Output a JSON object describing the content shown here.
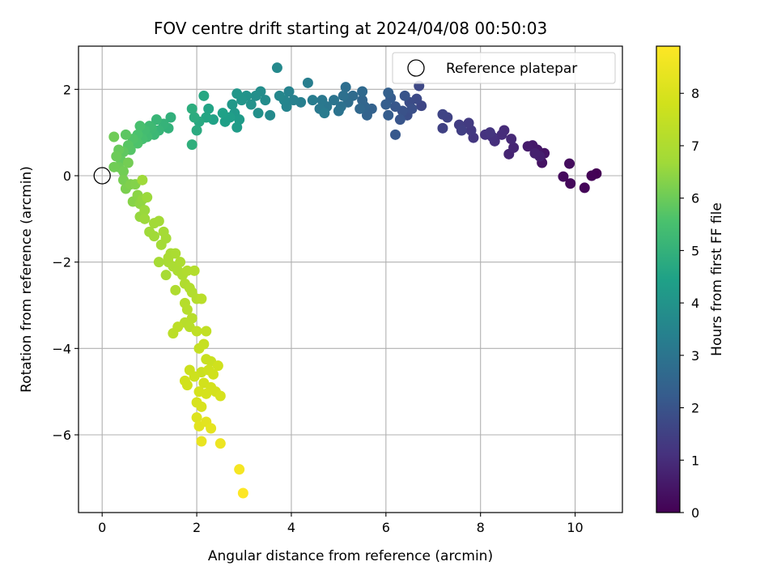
{
  "chart_data": {
    "type": "scatter",
    "title": "FOV centre drift starting at 2024/04/08 00:50:03",
    "xlabel": "Angular distance from reference (arcmin)",
    "ylabel": "Rotation from reference (arcmin)",
    "xlim": [
      -0.5,
      11.0
    ],
    "ylim": [
      -7.8,
      3.0
    ],
    "xticks": [
      0,
      2,
      4,
      6,
      8,
      10
    ],
    "yticks": [
      -6,
      -4,
      -2,
      0,
      2
    ],
    "xtick_labels": [
      "0",
      "2",
      "4",
      "6",
      "8",
      "10"
    ],
    "ytick_labels": [
      "−6",
      "−4",
      "−2",
      "0",
      "2"
    ],
    "grid": true,
    "colormap": "viridis",
    "colorbar": {
      "label": "Hours from first FF file",
      "range": [
        0,
        8.9
      ],
      "ticks": [
        0,
        1,
        2,
        3,
        4,
        5,
        6,
        7,
        8
      ],
      "tick_labels": [
        "0",
        "1",
        "2",
        "3",
        "4",
        "5",
        "6",
        "7",
        "8"
      ]
    },
    "legend": {
      "position": "top-right",
      "entries": [
        {
          "label": "Reference platepar",
          "marker": "open-circle"
        }
      ]
    },
    "reference_point": {
      "x": 0,
      "y": 0
    },
    "series": [
      {
        "points": [
          {
            "x": 10.45,
            "y": 0.05,
            "t": 0.0
          },
          {
            "x": 10.35,
            "y": 0.0,
            "t": 0.05
          },
          {
            "x": 10.2,
            "y": -0.28,
            "t": 0.1
          },
          {
            "x": 9.9,
            "y": -0.18,
            "t": 0.15
          },
          {
            "x": 9.75,
            "y": -0.02,
            "t": 0.2
          },
          {
            "x": 9.88,
            "y": 0.28,
            "t": 0.25
          },
          {
            "x": 9.3,
            "y": 0.3,
            "t": 0.4
          },
          {
            "x": 9.35,
            "y": 0.52,
            "t": 0.45
          },
          {
            "x": 9.2,
            "y": 0.6,
            "t": 0.5
          },
          {
            "x": 9.1,
            "y": 0.7,
            "t": 0.55
          },
          {
            "x": 9.0,
            "y": 0.68,
            "t": 0.6
          },
          {
            "x": 9.25,
            "y": 0.45,
            "t": 0.65
          },
          {
            "x": 9.15,
            "y": 0.52,
            "t": 0.7
          },
          {
            "x": 8.6,
            "y": 0.5,
            "t": 0.8
          },
          {
            "x": 8.7,
            "y": 0.65,
            "t": 0.85
          },
          {
            "x": 8.65,
            "y": 0.85,
            "t": 0.9
          },
          {
            "x": 8.5,
            "y": 1.05,
            "t": 0.95
          },
          {
            "x": 8.45,
            "y": 0.95,
            "t": 1.0
          },
          {
            "x": 8.3,
            "y": 0.8,
            "t": 1.05
          },
          {
            "x": 8.25,
            "y": 0.9,
            "t": 1.1
          },
          {
            "x": 8.1,
            "y": 0.95,
            "t": 1.15
          },
          {
            "x": 8.2,
            "y": 1.0,
            "t": 1.2
          },
          {
            "x": 7.85,
            "y": 0.88,
            "t": 1.25
          },
          {
            "x": 7.8,
            "y": 1.05,
            "t": 1.3
          },
          {
            "x": 7.75,
            "y": 1.22,
            "t": 1.35
          },
          {
            "x": 7.55,
            "y": 1.18,
            "t": 1.4
          },
          {
            "x": 7.6,
            "y": 1.05,
            "t": 1.45
          },
          {
            "x": 7.2,
            "y": 1.1,
            "t": 1.5
          },
          {
            "x": 7.3,
            "y": 1.35,
            "t": 1.55
          },
          {
            "x": 7.2,
            "y": 1.42,
            "t": 1.6
          },
          {
            "x": 6.75,
            "y": 1.62,
            "t": 1.65
          },
          {
            "x": 6.7,
            "y": 2.08,
            "t": 1.7
          },
          {
            "x": 6.65,
            "y": 1.78,
            "t": 1.75
          },
          {
            "x": 6.5,
            "y": 1.7,
            "t": 1.8
          },
          {
            "x": 6.45,
            "y": 1.4,
            "t": 1.85
          },
          {
            "x": 6.55,
            "y": 1.55,
            "t": 1.9
          },
          {
            "x": 6.35,
            "y": 1.5,
            "t": 1.95
          },
          {
            "x": 6.4,
            "y": 1.85,
            "t": 2.0
          },
          {
            "x": 6.3,
            "y": 1.3,
            "t": 2.05
          },
          {
            "x": 6.2,
            "y": 1.6,
            "t": 2.1
          },
          {
            "x": 6.2,
            "y": 0.95,
            "t": 2.15
          },
          {
            "x": 6.1,
            "y": 1.8,
            "t": 2.2
          },
          {
            "x": 6.05,
            "y": 1.4,
            "t": 2.25
          },
          {
            "x": 6.0,
            "y": 1.65,
            "t": 2.3
          },
          {
            "x": 6.05,
            "y": 1.92,
            "t": 2.35
          },
          {
            "x": 5.7,
            "y": 1.55,
            "t": 2.4
          },
          {
            "x": 5.6,
            "y": 1.4,
            "t": 2.45
          },
          {
            "x": 5.55,
            "y": 1.6,
            "t": 2.5
          },
          {
            "x": 5.5,
            "y": 1.75,
            "t": 2.55
          },
          {
            "x": 5.45,
            "y": 1.55,
            "t": 2.6
          },
          {
            "x": 5.5,
            "y": 1.95,
            "t": 2.65
          },
          {
            "x": 5.3,
            "y": 1.85,
            "t": 2.7
          },
          {
            "x": 5.2,
            "y": 1.7,
            "t": 2.75
          },
          {
            "x": 5.15,
            "y": 2.05,
            "t": 2.8
          },
          {
            "x": 5.1,
            "y": 1.85,
            "t": 2.85
          },
          {
            "x": 5.05,
            "y": 1.6,
            "t": 2.9
          },
          {
            "x": 5.0,
            "y": 1.5,
            "t": 2.95
          },
          {
            "x": 4.9,
            "y": 1.75,
            "t": 3.0
          },
          {
            "x": 4.75,
            "y": 1.6,
            "t": 3.05
          },
          {
            "x": 4.65,
            "y": 1.75,
            "t": 3.1
          },
          {
            "x": 4.6,
            "y": 1.55,
            "t": 3.15
          },
          {
            "x": 4.7,
            "y": 1.45,
            "t": 3.2
          },
          {
            "x": 4.45,
            "y": 1.75,
            "t": 3.25
          },
          {
            "x": 4.35,
            "y": 2.15,
            "t": 3.3
          },
          {
            "x": 4.2,
            "y": 1.7,
            "t": 3.35
          },
          {
            "x": 4.05,
            "y": 1.75,
            "t": 3.4
          },
          {
            "x": 3.95,
            "y": 1.95,
            "t": 3.45
          },
          {
            "x": 3.9,
            "y": 1.6,
            "t": 3.5
          },
          {
            "x": 3.85,
            "y": 1.75,
            "t": 3.55
          },
          {
            "x": 3.75,
            "y": 1.85,
            "t": 3.6
          },
          {
            "x": 3.7,
            "y": 2.5,
            "t": 3.65
          },
          {
            "x": 3.55,
            "y": 1.4,
            "t": 3.7
          },
          {
            "x": 3.45,
            "y": 1.75,
            "t": 3.75
          },
          {
            "x": 3.35,
            "y": 1.95,
            "t": 3.8
          },
          {
            "x": 3.25,
            "y": 1.85,
            "t": 3.85
          },
          {
            "x": 3.3,
            "y": 1.45,
            "t": 3.9
          },
          {
            "x": 3.15,
            "y": 1.65,
            "t": 3.95
          },
          {
            "x": 3.05,
            "y": 1.85,
            "t": 4.0
          },
          {
            "x": 2.95,
            "y": 1.75,
            "t": 4.05
          },
          {
            "x": 2.85,
            "y": 1.9,
            "t": 4.1
          },
          {
            "x": 2.75,
            "y": 1.65,
            "t": 4.15
          },
          {
            "x": 2.8,
            "y": 1.45,
            "t": 4.2
          },
          {
            "x": 2.9,
            "y": 1.3,
            "t": 4.25
          },
          {
            "x": 2.85,
            "y": 1.12,
            "t": 4.3
          },
          {
            "x": 2.7,
            "y": 1.35,
            "t": 4.35
          },
          {
            "x": 2.6,
            "y": 1.25,
            "t": 4.4
          },
          {
            "x": 2.55,
            "y": 1.45,
            "t": 4.45
          },
          {
            "x": 2.35,
            "y": 1.3,
            "t": 4.5
          },
          {
            "x": 2.25,
            "y": 1.55,
            "t": 4.55
          },
          {
            "x": 2.2,
            "y": 1.35,
            "t": 4.6
          },
          {
            "x": 2.15,
            "y": 1.85,
            "t": 4.65
          },
          {
            "x": 2.05,
            "y": 1.25,
            "t": 4.7
          },
          {
            "x": 2.0,
            "y": 1.05,
            "t": 4.75
          },
          {
            "x": 1.95,
            "y": 1.35,
            "t": 4.8
          },
          {
            "x": 1.9,
            "y": 1.55,
            "t": 4.85
          },
          {
            "x": 1.9,
            "y": 0.72,
            "t": 4.9
          },
          {
            "x": 1.45,
            "y": 1.35,
            "t": 4.95
          },
          {
            "x": 1.4,
            "y": 1.1,
            "t": 5.0
          },
          {
            "x": 1.3,
            "y": 1.2,
            "t": 5.05
          },
          {
            "x": 1.2,
            "y": 1.05,
            "t": 5.1
          },
          {
            "x": 1.15,
            "y": 1.3,
            "t": 5.15
          },
          {
            "x": 1.1,
            "y": 0.95,
            "t": 5.2
          },
          {
            "x": 1.05,
            "y": 1.1,
            "t": 5.25
          },
          {
            "x": 1.0,
            "y": 1.15,
            "t": 5.3
          },
          {
            "x": 0.95,
            "y": 0.9,
            "t": 5.35
          },
          {
            "x": 0.9,
            "y": 1.05,
            "t": 5.4
          },
          {
            "x": 0.85,
            "y": 0.85,
            "t": 5.45
          },
          {
            "x": 0.8,
            "y": 1.15,
            "t": 5.5
          },
          {
            "x": 0.75,
            "y": 0.95,
            "t": 5.55
          },
          {
            "x": 0.75,
            "y": 0.75,
            "t": 5.6
          },
          {
            "x": 0.65,
            "y": 0.85,
            "t": 5.65
          },
          {
            "x": 0.6,
            "y": 0.6,
            "t": 5.7
          },
          {
            "x": 0.55,
            "y": 0.7,
            "t": 5.75
          },
          {
            "x": 0.5,
            "y": 0.95,
            "t": 5.8
          },
          {
            "x": 0.45,
            "y": 0.55,
            "t": 5.85
          },
          {
            "x": 0.4,
            "y": 0.35,
            "t": 5.9
          },
          {
            "x": 0.35,
            "y": 0.6,
            "t": 5.95
          },
          {
            "x": 0.3,
            "y": 0.45,
            "t": 6.0
          },
          {
            "x": 0.35,
            "y": 0.2,
            "t": 6.02
          },
          {
            "x": 0.25,
            "y": 0.9,
            "t": 6.04
          },
          {
            "x": 0.25,
            "y": 0.2,
            "t": 6.06
          },
          {
            "x": 0.45,
            "y": 0.1,
            "t": 6.08
          },
          {
            "x": 0.55,
            "y": 0.3,
            "t": 6.1
          },
          {
            "x": 0.45,
            "y": -0.1,
            "t": 6.15
          },
          {
            "x": 0.5,
            "y": -0.3,
            "t": 6.2
          },
          {
            "x": 0.6,
            "y": -0.2,
            "t": 6.25
          },
          {
            "x": 0.7,
            "y": -0.2,
            "t": 6.3
          },
          {
            "x": 0.65,
            "y": -0.6,
            "t": 6.35
          },
          {
            "x": 0.75,
            "y": -0.45,
            "t": 6.4
          },
          {
            "x": 0.8,
            "y": -0.65,
            "t": 6.45
          },
          {
            "x": 0.85,
            "y": -0.55,
            "t": 6.5
          },
          {
            "x": 0.8,
            "y": -0.95,
            "t": 6.55
          },
          {
            "x": 0.9,
            "y": -0.8,
            "t": 6.6
          },
          {
            "x": 0.95,
            "y": -0.5,
            "t": 6.62
          },
          {
            "x": 0.9,
            "y": -1.0,
            "t": 6.64
          },
          {
            "x": 0.85,
            "y": -0.1,
            "t": 6.66
          },
          {
            "x": 1.0,
            "y": -1.3,
            "t": 6.68
          },
          {
            "x": 1.1,
            "y": -1.4,
            "t": 6.7
          },
          {
            "x": 1.1,
            "y": -1.1,
            "t": 6.72
          },
          {
            "x": 1.2,
            "y": -1.05,
            "t": 6.74
          },
          {
            "x": 1.25,
            "y": -1.6,
            "t": 6.76
          },
          {
            "x": 1.3,
            "y": -1.3,
            "t": 6.78
          },
          {
            "x": 1.35,
            "y": -1.45,
            "t": 6.8
          },
          {
            "x": 1.2,
            "y": -2.0,
            "t": 6.82
          },
          {
            "x": 1.35,
            "y": -2.3,
            "t": 6.84
          },
          {
            "x": 1.4,
            "y": -2.0,
            "t": 6.86
          },
          {
            "x": 1.45,
            "y": -1.8,
            "t": 6.88
          },
          {
            "x": 1.4,
            "y": -1.9,
            "t": 6.9
          },
          {
            "x": 1.5,
            "y": -2.1,
            "t": 6.92
          },
          {
            "x": 1.55,
            "y": -1.8,
            "t": 6.94
          },
          {
            "x": 1.6,
            "y": -2.2,
            "t": 6.96
          },
          {
            "x": 1.65,
            "y": -2.0,
            "t": 6.98
          },
          {
            "x": 1.7,
            "y": -2.3,
            "t": 7.0
          },
          {
            "x": 1.55,
            "y": -2.65,
            "t": 7.02
          },
          {
            "x": 1.75,
            "y": -2.5,
            "t": 7.04
          },
          {
            "x": 1.8,
            "y": -2.2,
            "t": 7.06
          },
          {
            "x": 1.85,
            "y": -2.6,
            "t": 7.08
          },
          {
            "x": 1.9,
            "y": -2.7,
            "t": 7.1
          },
          {
            "x": 1.95,
            "y": -2.2,
            "t": 7.12
          },
          {
            "x": 2.0,
            "y": -2.85,
            "t": 7.14
          },
          {
            "x": 1.75,
            "y": -2.95,
            "t": 7.16
          },
          {
            "x": 1.8,
            "y": -3.1,
            "t": 7.18
          },
          {
            "x": 1.9,
            "y": -3.3,
            "t": 7.2
          },
          {
            "x": 1.75,
            "y": -3.4,
            "t": 7.22
          },
          {
            "x": 1.85,
            "y": -3.5,
            "t": 7.24
          },
          {
            "x": 2.1,
            "y": -2.85,
            "t": 7.26
          },
          {
            "x": 1.5,
            "y": -3.65,
            "t": 7.3
          },
          {
            "x": 1.6,
            "y": -3.5,
            "t": 7.35
          },
          {
            "x": 2.0,
            "y": -3.6,
            "t": 7.4
          },
          {
            "x": 2.2,
            "y": -3.6,
            "t": 7.45
          },
          {
            "x": 2.05,
            "y": -4.0,
            "t": 7.5
          },
          {
            "x": 2.15,
            "y": -3.9,
            "t": 7.55
          },
          {
            "x": 2.2,
            "y": -4.25,
            "t": 7.6
          },
          {
            "x": 2.3,
            "y": -4.3,
            "t": 7.62
          },
          {
            "x": 2.1,
            "y": -4.55,
            "t": 7.65
          },
          {
            "x": 1.85,
            "y": -4.5,
            "t": 7.7
          },
          {
            "x": 1.95,
            "y": -4.65,
            "t": 7.72
          },
          {
            "x": 2.25,
            "y": -4.5,
            "t": 7.74
          },
          {
            "x": 2.45,
            "y": -4.4,
            "t": 7.76
          },
          {
            "x": 2.35,
            "y": -4.6,
            "t": 7.78
          },
          {
            "x": 1.75,
            "y": -4.75,
            "t": 7.8
          },
          {
            "x": 1.8,
            "y": -4.85,
            "t": 7.82
          },
          {
            "x": 2.15,
            "y": -4.8,
            "t": 7.84
          },
          {
            "x": 2.3,
            "y": -4.9,
            "t": 7.86
          },
          {
            "x": 2.4,
            "y": -5.0,
            "t": 7.88
          },
          {
            "x": 2.05,
            "y": -5.0,
            "t": 7.9
          },
          {
            "x": 2.2,
            "y": -5.05,
            "t": 7.92
          },
          {
            "x": 2.5,
            "y": -5.1,
            "t": 7.94
          },
          {
            "x": 2.0,
            "y": -5.25,
            "t": 7.96
          },
          {
            "x": 2.1,
            "y": -5.35,
            "t": 7.98
          },
          {
            "x": 2.0,
            "y": -5.6,
            "t": 8.1
          },
          {
            "x": 2.05,
            "y": -5.8,
            "t": 8.2
          },
          {
            "x": 2.2,
            "y": -5.7,
            "t": 8.25
          },
          {
            "x": 2.3,
            "y": -5.85,
            "t": 8.3
          },
          {
            "x": 2.1,
            "y": -6.15,
            "t": 8.4
          },
          {
            "x": 2.5,
            "y": -6.2,
            "t": 8.5
          },
          {
            "x": 2.9,
            "y": -6.8,
            "t": 8.7
          },
          {
            "x": 2.98,
            "y": -7.35,
            "t": 8.9
          }
        ]
      }
    ]
  }
}
